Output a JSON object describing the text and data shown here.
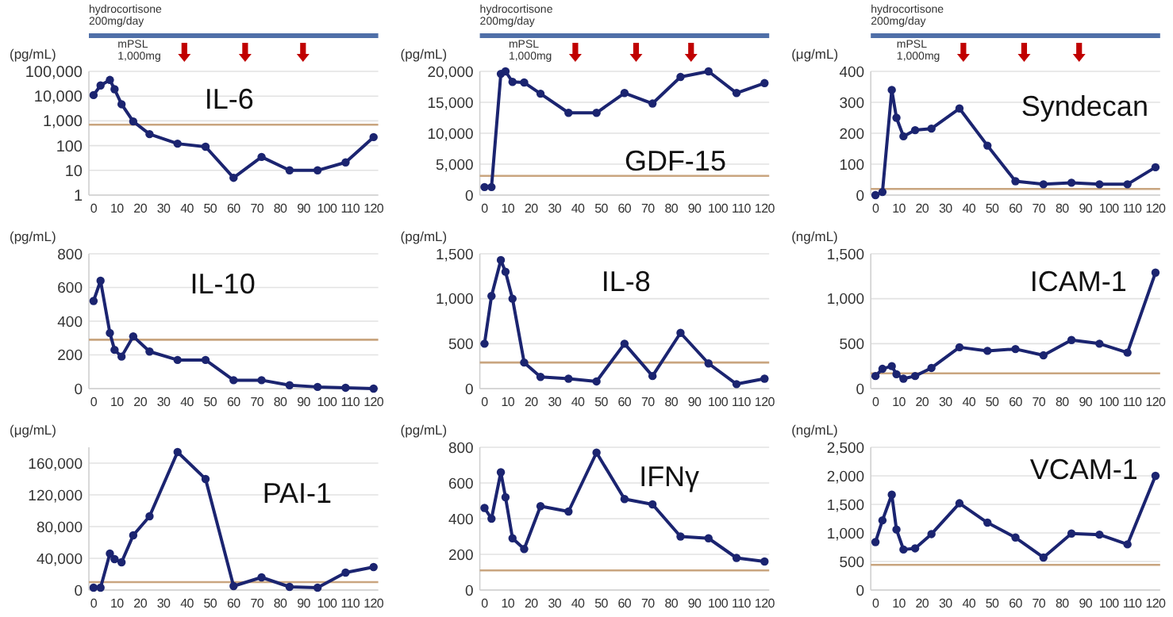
{
  "chart_data": [
    {
      "type": "line",
      "title": "IL-6",
      "ylabel": "(pg/mL)",
      "log": "y",
      "grid": "y",
      "marker": "circle",
      "line_style": "solid",
      "x": [
        0,
        3,
        7,
        9,
        12,
        17,
        24,
        36,
        48,
        60,
        72,
        84,
        96,
        108,
        120
      ],
      "series": [
        {
          "color": "#1b2470",
          "values": [
            11000,
            27000,
            45000,
            19000,
            4700,
            950,
            290,
            120,
            90,
            5,
            35,
            10,
            10,
            21,
            220
          ]
        }
      ],
      "xlim": [
        -2,
        122
      ],
      "xticks": [
        0,
        10,
        20,
        30,
        40,
        50,
        60,
        70,
        80,
        90,
        100,
        110,
        120
      ],
      "ylim": [
        1,
        100000
      ],
      "yticks": [
        1,
        10,
        100,
        {
          "value": 1000,
          "label": "1,000"
        },
        {
          "value": 10000,
          "label": "10,000"
        },
        {
          "value": 100000,
          "label": "100,000"
        }
      ],
      "ref_lines": [
        {
          "axis": "y",
          "value": 700,
          "label": null,
          "color": "#c9a57f"
        }
      ],
      "annotations": [
        "hydrocortisone 200mg/day",
        "mPSL 1,000mg"
      ]
    },
    {
      "type": "line",
      "title": "GDF-15",
      "ylabel": "(pg/mL)",
      "grid": "y",
      "marker": "circle",
      "line_style": "solid",
      "x": [
        0,
        3,
        7,
        9,
        12,
        17,
        24,
        36,
        48,
        60,
        72,
        84,
        96,
        108,
        120
      ],
      "series": [
        {
          "color": "#1b2470",
          "values": [
            1300,
            1300,
            19600,
            20000,
            18300,
            18200,
            16400,
            13300,
            13300,
            16500,
            14800,
            19100,
            20000,
            16500,
            18100
          ]
        }
      ],
      "xlim": [
        -2,
        122
      ],
      "xticks": [
        0,
        10,
        20,
        30,
        40,
        50,
        60,
        70,
        80,
        90,
        100,
        110,
        120
      ],
      "ylim": [
        0,
        20000
      ],
      "yticks": [
        0,
        {
          "value": 5000,
          "label": "5,000"
        },
        {
          "value": 10000,
          "label": "10,000"
        },
        {
          "value": 15000,
          "label": "15,000"
        },
        {
          "value": 20000,
          "label": "20,000"
        }
      ],
      "ref_lines": [
        {
          "axis": "y",
          "value": 3100,
          "label": null,
          "color": "#c9a57f"
        }
      ],
      "annotations": [
        "hydrocortisone 200mg/day",
        "mPSL 1,000mg"
      ]
    },
    {
      "type": "line",
      "title": "Syndecan",
      "ylabel": "(μg/mL)",
      "grid": "y",
      "marker": "circle",
      "line_style": "solid",
      "x": [
        0,
        3,
        7,
        9,
        12,
        17,
        24,
        36,
        48,
        60,
        72,
        84,
        96,
        108,
        120
      ],
      "series": [
        {
          "color": "#1b2470",
          "values": [
            0,
            10,
            340,
            250,
            190,
            210,
            215,
            280,
            160,
            45,
            35,
            40,
            35,
            35,
            90
          ]
        }
      ],
      "xlim": [
        -2,
        122
      ],
      "xticks": [
        0,
        10,
        20,
        30,
        40,
        50,
        60,
        70,
        80,
        90,
        100,
        110,
        120
      ],
      "ylim": [
        0,
        400
      ],
      "yticks": [
        0,
        100,
        200,
        300,
        400
      ],
      "ref_lines": [
        {
          "axis": "y",
          "value": 20,
          "label": null,
          "color": "#c9a57f"
        }
      ],
      "annotations": [
        "hydrocortisone 200mg/day",
        "mPSL 1,000mg"
      ]
    },
    {
      "type": "line",
      "title": "IL-10",
      "ylabel": "(pg/mL)",
      "grid": "y",
      "marker": "circle",
      "line_style": "solid",
      "x": [
        0,
        3,
        7,
        9,
        12,
        17,
        24,
        36,
        48,
        60,
        72,
        84,
        96,
        108,
        120
      ],
      "series": [
        {
          "color": "#1b2470",
          "values": [
            520,
            640,
            330,
            230,
            190,
            310,
            220,
            170,
            170,
            50,
            50,
            20,
            10,
            5,
            0
          ]
        }
      ],
      "xlim": [
        -2,
        122
      ],
      "xticks": [
        0,
        10,
        20,
        30,
        40,
        50,
        60,
        70,
        80,
        90,
        100,
        110,
        120
      ],
      "ylim": [
        0,
        800
      ],
      "yticks": [
        0,
        200,
        400,
        600,
        800
      ],
      "ref_lines": [
        {
          "axis": "y",
          "value": 290,
          "label": null,
          "color": "#c9a57f"
        }
      ]
    },
    {
      "type": "line",
      "title": "IL-8",
      "ylabel": "(pg/mL)",
      "grid": "y",
      "marker": "circle",
      "line_style": "solid",
      "x": [
        0,
        3,
        7,
        9,
        12,
        17,
        24,
        36,
        48,
        60,
        72,
        84,
        96,
        108,
        120
      ],
      "series": [
        {
          "color": "#1b2470",
          "values": [
            500,
            1030,
            1430,
            1300,
            1000,
            290,
            130,
            110,
            80,
            500,
            140,
            620,
            280,
            50,
            110
          ]
        }
      ],
      "xlim": [
        -2,
        122
      ],
      "xticks": [
        0,
        10,
        20,
        30,
        40,
        50,
        60,
        70,
        80,
        90,
        100,
        110,
        120
      ],
      "ylim": [
        0,
        1500
      ],
      "yticks": [
        0,
        500,
        {
          "value": 1000,
          "label": "1,000"
        },
        {
          "value": 1500,
          "label": "1,500"
        }
      ],
      "ref_lines": [
        {
          "axis": "y",
          "value": 290,
          "label": null,
          "color": "#c9a57f"
        }
      ]
    },
    {
      "type": "line",
      "title": "ICAM-1",
      "ylabel": "(ng/mL)",
      "grid": "y",
      "marker": "circle",
      "line_style": "solid",
      "x": [
        0,
        3,
        7,
        9,
        12,
        17,
        24,
        36,
        48,
        60,
        72,
        84,
        96,
        108,
        120
      ],
      "series": [
        {
          "color": "#1b2470",
          "values": [
            140,
            220,
            250,
            160,
            110,
            140,
            230,
            460,
            420,
            440,
            370,
            540,
            500,
            400,
            1290
          ]
        }
      ],
      "xlim": [
        -2,
        122
      ],
      "xticks": [
        0,
        10,
        20,
        30,
        40,
        50,
        60,
        70,
        80,
        90,
        100,
        110,
        120
      ],
      "ylim": [
        0,
        1500
      ],
      "yticks": [
        0,
        500,
        {
          "value": 1000,
          "label": "1,000"
        },
        {
          "value": 1500,
          "label": "1,500"
        }
      ],
      "ref_lines": [
        {
          "axis": "y",
          "value": 170,
          "label": null,
          "color": "#c9a57f"
        }
      ]
    },
    {
      "type": "line",
      "title": "PAI-1",
      "ylabel": "(μg/mL)",
      "grid": "y",
      "marker": "circle",
      "line_style": "solid",
      "x": [
        0,
        3,
        7,
        9,
        12,
        17,
        24,
        36,
        48,
        60,
        72,
        84,
        96,
        108,
        120
      ],
      "series": [
        {
          "color": "#1b2470",
          "values": [
            3000,
            3000,
            46000,
            39000,
            35000,
            69000,
            93000,
            174000,
            140000,
            5000,
            16000,
            4000,
            3000,
            22000,
            29000
          ]
        }
      ],
      "xlim": [
        -2,
        122
      ],
      "xticks": [
        0,
        10,
        20,
        30,
        40,
        50,
        60,
        70,
        80,
        90,
        100,
        110,
        120
      ],
      "ylim": [
        0,
        180000
      ],
      "yticks": [
        0,
        {
          "value": 40000,
          "label": "40,000"
        },
        {
          "value": 80000,
          "label": "80,000"
        },
        {
          "value": 120000,
          "label": "120,000"
        },
        {
          "value": 160000,
          "label": "160,000"
        }
      ],
      "ref_lines": [
        {
          "axis": "y",
          "value": 10000,
          "label": null,
          "color": "#c9a57f"
        }
      ]
    },
    {
      "type": "line",
      "title": "IFNγ",
      "ylabel": "(pg/mL)",
      "grid": "y",
      "marker": "circle",
      "line_style": "solid",
      "x": [
        0,
        3,
        7,
        9,
        12,
        17,
        24,
        36,
        48,
        60,
        72,
        84,
        96,
        108,
        120
      ],
      "series": [
        {
          "color": "#1b2470",
          "values": [
            460,
            400,
            660,
            520,
            290,
            230,
            470,
            440,
            770,
            510,
            480,
            300,
            290,
            180,
            160
          ]
        }
      ],
      "xlim": [
        -2,
        122
      ],
      "xticks": [
        0,
        10,
        20,
        30,
        40,
        50,
        60,
        70,
        80,
        90,
        100,
        110,
        120
      ],
      "ylim": [
        0,
        800
      ],
      "yticks": [
        0,
        200,
        400,
        600,
        800
      ],
      "ref_lines": [
        {
          "axis": "y",
          "value": 110,
          "label": null,
          "color": "#c9a57f"
        }
      ]
    },
    {
      "type": "line",
      "title": "VCAM-1",
      "ylabel": "(ng/mL)",
      "grid": "y",
      "marker": "circle",
      "line_style": "solid",
      "x": [
        0,
        3,
        7,
        9,
        12,
        17,
        24,
        36,
        48,
        60,
        72,
        84,
        96,
        108,
        120
      ],
      "series": [
        {
          "color": "#1b2470",
          "values": [
            840,
            1220,
            1670,
            1060,
            710,
            730,
            980,
            1520,
            1180,
            920,
            570,
            990,
            970,
            800,
            2000
          ]
        }
      ],
      "xlim": [
        -2,
        122
      ],
      "xticks": [
        0,
        10,
        20,
        30,
        40,
        50,
        60,
        70,
        80,
        90,
        100,
        110,
        120
      ],
      "ylim": [
        0,
        2500
      ],
      "yticks": [
        0,
        500,
        {
          "value": 1000,
          "label": "1,000"
        },
        {
          "value": 1500,
          "label": "1,500"
        },
        {
          "value": 2000,
          "label": "2,000"
        },
        {
          "value": 2500,
          "label": "2,500"
        }
      ],
      "ref_lines": [
        {
          "axis": "y",
          "value": 440,
          "label": null,
          "color": "#c9a57f"
        }
      ]
    }
  ]
}
